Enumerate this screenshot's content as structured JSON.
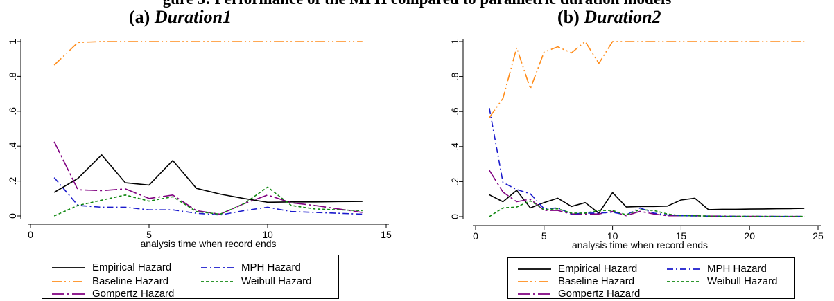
{
  "figure": {
    "title_visible": "gure 5: Performance of the MPH compared to parametric duration models"
  },
  "chart_data": [
    {
      "type": "line",
      "title_prefix": "(a) ",
      "title_name": "Duration1",
      "xlabel": "analysis time when record ends",
      "ylabel": "",
      "xlim": [
        0,
        15
      ],
      "ylim": [
        0,
        1
      ],
      "x_ticks": [
        0,
        5,
        10,
        15
      ],
      "y_ticks": [
        0,
        0.2,
        0.4,
        0.6,
        0.8,
        1
      ],
      "y_tick_labels": [
        "0",
        ".2",
        ".4",
        ".6",
        ".8",
        "1"
      ],
      "grid": false,
      "x": [
        1,
        2,
        3,
        4,
        5,
        6,
        7,
        8,
        9,
        10,
        11,
        12,
        13,
        14
      ],
      "series": [
        {
          "name": "Empirical Hazard",
          "color": "#000000",
          "dash": "none",
          "values": [
            0.135,
            0.215,
            0.35,
            0.19,
            0.177,
            0.318,
            0.158,
            0.125,
            0.1,
            0.078,
            0.08,
            0.08,
            0.082,
            0.083
          ]
        },
        {
          "name": "Baseline Hazard",
          "color": "#ff8c1a",
          "dash": "14,4,2,4,2,4",
          "values": [
            0.865,
            0.995,
            1,
            1,
            1,
            1,
            1,
            1,
            1,
            1,
            1,
            1,
            1,
            1
          ]
        },
        {
          "name": "Gompertz Hazard",
          "color": "#800080",
          "dash": "18,4,3,4",
          "values": [
            0.425,
            0.15,
            0.145,
            0.155,
            0.1,
            0.12,
            0.03,
            0.01,
            0.07,
            0.12,
            0.075,
            0.06,
            0.04,
            0.02
          ]
        },
        {
          "name": "MPH Hazard",
          "color": "#1a1acc",
          "dash": "9,4,2,4",
          "values": [
            0.22,
            0.06,
            0.05,
            0.05,
            0.035,
            0.035,
            0.015,
            0.005,
            0.03,
            0.05,
            0.025,
            0.02,
            0.015,
            0.01
          ]
        },
        {
          "name": "Weibull Hazard",
          "color": "#118811",
          "dash": "4,3",
          "values": [
            0,
            0.06,
            0.09,
            0.12,
            0.085,
            0.11,
            0.025,
            0.01,
            0.07,
            0.165,
            0.06,
            0.04,
            0.035,
            0.03
          ]
        }
      ]
    },
    {
      "type": "line",
      "title_prefix": "(b) ",
      "title_name": "Duration2",
      "xlabel": "analysis time when record ends",
      "ylabel": "",
      "xlim": [
        0,
        25
      ],
      "ylim": [
        0,
        1
      ],
      "x_ticks": [
        0,
        5,
        10,
        15,
        20,
        25
      ],
      "y_ticks": [
        0,
        0.2,
        0.4,
        0.6,
        0.8,
        1
      ],
      "y_tick_labels": [
        "0",
        ".2",
        ".4",
        ".6",
        ".8",
        "1"
      ],
      "grid": false,
      "x": [
        1,
        2,
        3,
        4,
        5,
        6,
        7,
        8,
        9,
        10,
        11,
        12,
        13,
        14,
        15,
        16,
        17,
        18,
        19,
        20,
        21,
        22,
        23,
        24
      ],
      "series": [
        {
          "name": "Empirical Hazard",
          "color": "#000000",
          "dash": "none",
          "values": [
            0.125,
            0.085,
            0.15,
            0.05,
            0.08,
            0.105,
            0.058,
            0.08,
            0.02,
            0.137,
            0.055,
            0.058,
            0.058,
            0.06,
            0.095,
            0.105,
            0.04,
            0.042,
            0.042,
            0.043,
            0.044,
            0.045,
            0.046,
            0.047
          ]
        },
        {
          "name": "Baseline Hazard",
          "color": "#ff8c1a",
          "dash": "14,4,2,4,2,4",
          "values": [
            0.565,
            0.675,
            0.965,
            0.73,
            0.94,
            0.97,
            0.935,
            1,
            0.875,
            1,
            1,
            1,
            1,
            1,
            1,
            1,
            1,
            1,
            1,
            1,
            1,
            1,
            1,
            1
          ]
        },
        {
          "name": "Gompertz Hazard",
          "color": "#800080",
          "dash": "18,4,3,4",
          "values": [
            0.265,
            0.14,
            0.085,
            0.1,
            0.035,
            0.035,
            0.015,
            0.015,
            0.015,
            0.03,
            0.005,
            0.03,
            0.015,
            0.005,
            0.005,
            0.005,
            0.003,
            0.003,
            0.002,
            0.002,
            0.002,
            0.001,
            0.001,
            0.001
          ]
        },
        {
          "name": "MPH Hazard",
          "color": "#1a1acc",
          "dash": "9,4,2,4",
          "values": [
            0.62,
            0.195,
            0.155,
            0.13,
            0.045,
            0.05,
            0.015,
            0.02,
            0.02,
            0.025,
            0.01,
            0.05,
            0.02,
            0.01,
            0.005,
            0.004,
            0.003,
            0.002,
            0.002,
            0.001,
            0.001,
            0.001,
            0.001,
            0.001
          ]
        },
        {
          "name": "Weibull Hazard",
          "color": "#118811",
          "dash": "4,3",
          "values": [
            0,
            0.05,
            0.055,
            0.09,
            0.04,
            0.045,
            0.02,
            0.02,
            0.035,
            0.035,
            0.01,
            0.04,
            0.035,
            0.015,
            0.005,
            0.005,
            0.003,
            0.002,
            0.002,
            0.002,
            0.001,
            0.001,
            0.001,
            0.001
          ]
        }
      ]
    }
  ]
}
